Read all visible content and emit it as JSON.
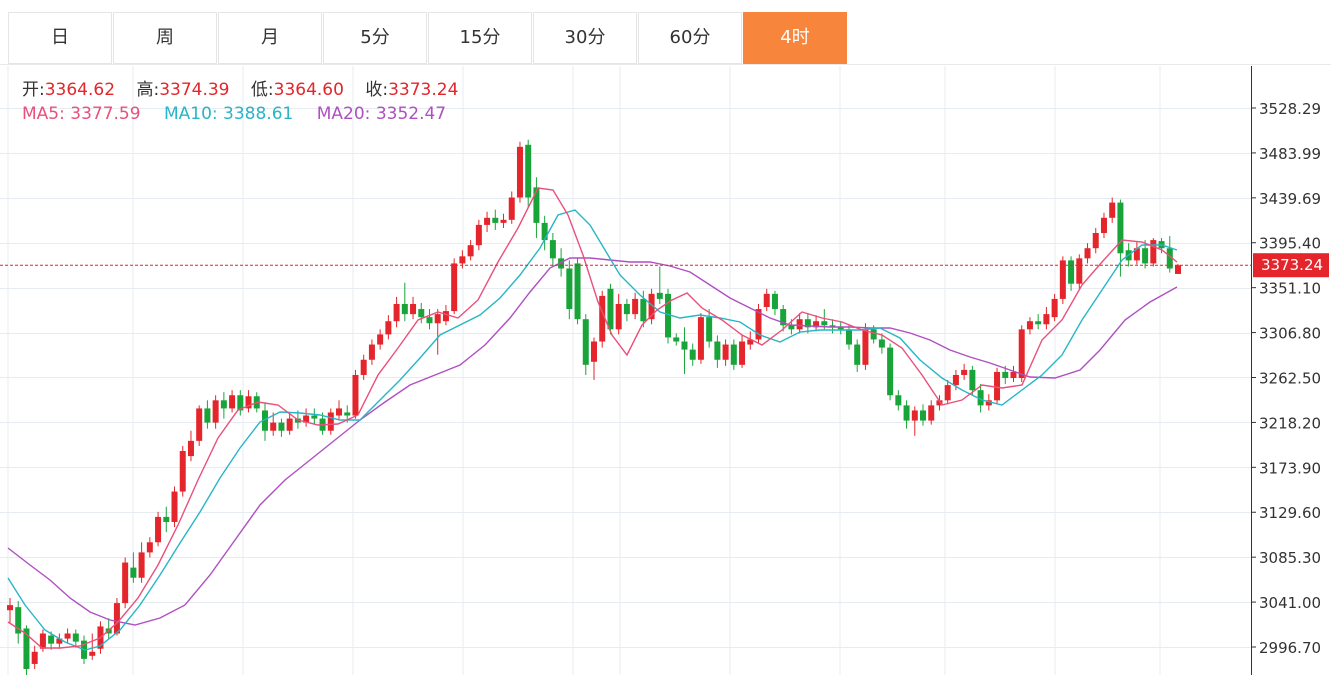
{
  "tabs": [
    {
      "label": "日",
      "active": false
    },
    {
      "label": "周",
      "active": false
    },
    {
      "label": "月",
      "active": false
    },
    {
      "label": "5分",
      "active": false
    },
    {
      "label": "15分",
      "active": false
    },
    {
      "label": "30分",
      "active": false
    },
    {
      "label": "60分",
      "active": false
    },
    {
      "label": "4时",
      "active": true
    }
  ],
  "info": {
    "open_label": "开:",
    "open": "3364.62",
    "high_label": "高:",
    "high": "3374.39",
    "low_label": "低:",
    "low": "3364.60",
    "close_label": "收:",
    "close": "3373.24",
    "ma5_label": "MA5:",
    "ma5": "3377.59",
    "ma10_label": "MA10:",
    "ma10": "3388.61",
    "ma20_label": "MA20:",
    "ma20": "3352.47"
  },
  "colors": {
    "up": "#e4252b",
    "down": "#19a43a",
    "ma5": "#e9507c",
    "ma10": "#28b5c7",
    "ma20": "#b04fc2",
    "grid": "#e6ecf2",
    "active_tab": "#f7853c",
    "last_price_line": "#e4252b"
  },
  "chart_data": {
    "type": "candlestick",
    "yticks": [
      "3528.29",
      "3483.99",
      "3439.69",
      "3395.40",
      "3351.10",
      "3306.80",
      "3262.50",
      "3218.20",
      "3173.90",
      "3129.60",
      "3085.30",
      "3041.00",
      "2996.70"
    ],
    "ylim": [
      2975,
      3580
    ],
    "last_price": 3373.24,
    "last_price_label": "3373.24",
    "candles": [
      [
        3033,
        3038,
        3020,
        3045
      ],
      [
        3036,
        3010,
        3000,
        3042
      ],
      [
        3015,
        2975,
        2965,
        3018
      ],
      [
        2980,
        2992,
        2975,
        2998
      ],
      [
        2995,
        3010,
        2992,
        3014
      ],
      [
        3008,
        3000,
        2994,
        3012
      ],
      [
        3000,
        3005,
        2995,
        3010
      ],
      [
        3005,
        3010,
        3000,
        3015
      ],
      [
        3010,
        3002,
        2996,
        3014
      ],
      [
        3003,
        2985,
        2980,
        3008
      ],
      [
        2988,
        2992,
        2984,
        3010
      ],
      [
        2995,
        3017,
        2990,
        3022
      ],
      [
        3015,
        3010,
        3005,
        3025
      ],
      [
        3010,
        3040,
        3008,
        3045
      ],
      [
        3040,
        3080,
        3035,
        3085
      ],
      [
        3075,
        3065,
        3060,
        3090
      ],
      [
        3065,
        3090,
        3060,
        3100
      ],
      [
        3090,
        3100,
        3085,
        3105
      ],
      [
        3100,
        3125,
        3096,
        3130
      ],
      [
        3125,
        3120,
        3110,
        3135
      ],
      [
        3120,
        3150,
        3115,
        3155
      ],
      [
        3150,
        3190,
        3145,
        3195
      ],
      [
        3185,
        3200,
        3180,
        3210
      ],
      [
        3200,
        3232,
        3195,
        3235
      ],
      [
        3232,
        3218,
        3212,
        3240
      ],
      [
        3218,
        3240,
        3212,
        3245
      ],
      [
        3240,
        3232,
        3222,
        3248
      ],
      [
        3232,
        3245,
        3228,
        3250
      ],
      [
        3245,
        3230,
        3225,
        3250
      ],
      [
        3232,
        3244,
        3228,
        3250
      ],
      [
        3244,
        3232,
        3228,
        3248
      ],
      [
        3230,
        3210,
        3200,
        3238
      ],
      [
        3210,
        3218,
        3205,
        3228
      ],
      [
        3218,
        3210,
        3204,
        3222
      ],
      [
        3210,
        3222,
        3206,
        3228
      ],
      [
        3222,
        3218,
        3212,
        3230
      ],
      [
        3218,
        3225,
        3214,
        3232
      ],
      [
        3225,
        3222,
        3216,
        3232
      ],
      [
        3222,
        3210,
        3206,
        3228
      ],
      [
        3210,
        3228,
        3206,
        3232
      ],
      [
        3225,
        3232,
        3220,
        3240
      ],
      [
        3228,
        3225,
        3218,
        3235
      ],
      [
        3225,
        3265,
        3222,
        3270
      ],
      [
        3265,
        3280,
        3260,
        3285
      ],
      [
        3280,
        3295,
        3275,
        3300
      ],
      [
        3295,
        3305,
        3290,
        3310
      ],
      [
        3305,
        3318,
        3300,
        3324
      ],
      [
        3318,
        3335,
        3312,
        3342
      ],
      [
        3335,
        3325,
        3318,
        3356
      ],
      [
        3325,
        3335,
        3320,
        3342
      ],
      [
        3330,
        3322,
        3316,
        3336
      ],
      [
        3322,
        3316,
        3310,
        3330
      ],
      [
        3316,
        3325,
        3285,
        3330
      ],
      [
        3318,
        3328,
        3314,
        3334
      ],
      [
        3328,
        3375,
        3325,
        3380
      ],
      [
        3375,
        3382,
        3370,
        3388
      ],
      [
        3382,
        3393,
        3378,
        3398
      ],
      [
        3393,
        3413,
        3388,
        3418
      ],
      [
        3413,
        3420,
        3406,
        3426
      ],
      [
        3420,
        3415,
        3408,
        3428
      ],
      [
        3415,
        3418,
        3410,
        3424
      ],
      [
        3418,
        3440,
        3414,
        3446
      ],
      [
        3440,
        3490,
        3435,
        3495
      ],
      [
        3492,
        3440,
        3430,
        3497
      ],
      [
        3450,
        3415,
        3400,
        3460
      ],
      [
        3415,
        3398,
        3388,
        3422
      ],
      [
        3398,
        3380,
        3372,
        3405
      ],
      [
        3380,
        3370,
        3362,
        3390
      ],
      [
        3370,
        3330,
        3320,
        3378
      ],
      [
        3375,
        3320,
        3315,
        3380
      ],
      [
        3320,
        3275,
        3265,
        3325
      ],
      [
        3278,
        3298,
        3260,
        3302
      ],
      [
        3298,
        3343,
        3292,
        3348
      ],
      [
        3350,
        3310,
        3305,
        3355
      ],
      [
        3310,
        3335,
        3305,
        3345
      ],
      [
        3335,
        3325,
        3318,
        3340
      ],
      [
        3325,
        3340,
        3320,
        3346
      ],
      [
        3340,
        3318,
        3312,
        3348
      ],
      [
        3320,
        3345,
        3315,
        3350
      ],
      [
        3346,
        3340,
        3335,
        3372
      ],
      [
        3345,
        3302,
        3296,
        3350
      ],
      [
        3302,
        3298,
        3294,
        3306
      ],
      [
        3298,
        3290,
        3266,
        3312
      ],
      [
        3290,
        3280,
        3274,
        3296
      ],
      [
        3280,
        3322,
        3276,
        3326
      ],
      [
        3322,
        3298,
        3292,
        3330
      ],
      [
        3298,
        3280,
        3272,
        3304
      ],
      [
        3280,
        3295,
        3274,
        3300
      ],
      [
        3295,
        3275,
        3270,
        3300
      ],
      [
        3275,
        3298,
        3272,
        3305
      ],
      [
        3295,
        3300,
        3290,
        3308
      ],
      [
        3300,
        3330,
        3296,
        3335
      ],
      [
        3332,
        3345,
        3328,
        3350
      ],
      [
        3345,
        3330,
        3324,
        3348
      ],
      [
        3330,
        3314,
        3308,
        3334
      ],
      [
        3314,
        3310,
        3305,
        3320
      ],
      [
        3310,
        3320,
        3306,
        3326
      ],
      [
        3320,
        3312,
        3306,
        3326
      ],
      [
        3312,
        3318,
        3308,
        3324
      ],
      [
        3318,
        3314,
        3310,
        3330
      ],
      [
        3314,
        3312,
        3306,
        3320
      ],
      [
        3312,
        3310,
        3305,
        3318
      ],
      [
        3310,
        3295,
        3290,
        3314
      ],
      [
        3295,
        3275,
        3268,
        3300
      ],
      [
        3275,
        3310,
        3270,
        3316
      ],
      [
        3310,
        3300,
        3296,
        3314
      ],
      [
        3300,
        3292,
        3286,
        3306
      ],
      [
        3292,
        3245,
        3240,
        3296
      ],
      [
        3245,
        3235,
        3230,
        3250
      ],
      [
        3235,
        3220,
        3212,
        3240
      ],
      [
        3220,
        3230,
        3205,
        3234
      ],
      [
        3230,
        3220,
        3215,
        3236
      ],
      [
        3220,
        3235,
        3216,
        3240
      ],
      [
        3235,
        3240,
        3230,
        3245
      ],
      [
        3240,
        3255,
        3236,
        3260
      ],
      [
        3255,
        3265,
        3250,
        3270
      ],
      [
        3265,
        3270,
        3260,
        3276
      ],
      [
        3270,
        3250,
        3245,
        3274
      ],
      [
        3250,
        3235,
        3228,
        3256
      ],
      [
        3235,
        3240,
        3230,
        3246
      ],
      [
        3240,
        3268,
        3236,
        3272
      ],
      [
        3268,
        3262,
        3256,
        3274
      ],
      [
        3262,
        3268,
        3258,
        3274
      ],
      [
        3262,
        3310,
        3258,
        3314
      ],
      [
        3310,
        3318,
        3305,
        3322
      ],
      [
        3318,
        3315,
        3310,
        3325
      ],
      [
        3315,
        3325,
        3310,
        3332
      ],
      [
        3322,
        3340,
        3318,
        3345
      ],
      [
        3340,
        3378,
        3335,
        3382
      ],
      [
        3378,
        3355,
        3348,
        3382
      ],
      [
        3355,
        3380,
        3350,
        3384
      ],
      [
        3380,
        3390,
        3375,
        3395
      ],
      [
        3390,
        3405,
        3385,
        3410
      ],
      [
        3405,
        3420,
        3400,
        3425
      ],
      [
        3420,
        3435,
        3415,
        3440
      ],
      [
        3435,
        3385,
        3362,
        3438
      ],
      [
        3388,
        3378,
        3372,
        3395
      ],
      [
        3378,
        3390,
        3374,
        3396
      ],
      [
        3390,
        3375,
        3370,
        3398
      ],
      [
        3375,
        3398,
        3372,
        3400
      ],
      [
        3397,
        3390,
        3385,
        3400
      ],
      [
        3390,
        3370,
        3366,
        3402
      ],
      [
        3364.62,
        3373.24,
        3364.6,
        3374.39
      ]
    ],
    "ma5": [
      [
        8,
        622
      ],
      [
        25,
        633
      ],
      [
        42,
        648
      ],
      [
        60,
        648
      ],
      [
        80,
        646
      ],
      [
        100,
        638
      ],
      [
        118,
        622
      ],
      [
        138,
        598
      ],
      [
        158,
        565
      ],
      [
        178,
        525
      ],
      [
        198,
        480
      ],
      [
        218,
        438
      ],
      [
        238,
        410
      ],
      [
        258,
        402
      ],
      [
        278,
        405
      ],
      [
        298,
        420
      ],
      [
        318,
        425
      ],
      [
        338,
        424
      ],
      [
        358,
        415
      ],
      [
        378,
        375
      ],
      [
        398,
        348
      ],
      [
        418,
        320
      ],
      [
        438,
        312
      ],
      [
        458,
        318
      ],
      [
        478,
        300
      ],
      [
        498,
        262
      ],
      [
        518,
        228
      ],
      [
        538,
        188
      ],
      [
        553,
        190
      ],
      [
        568,
        215
      ],
      [
        583,
        255
      ],
      [
        598,
        302
      ],
      [
        612,
        335
      ],
      [
        627,
        355
      ],
      [
        642,
        325
      ],
      [
        657,
        310
      ],
      [
        672,
        300
      ],
      [
        687,
        293
      ],
      [
        702,
        308
      ],
      [
        722,
        320
      ],
      [
        742,
        335
      ],
      [
        762,
        345
      ],
      [
        782,
        330
      ],
      [
        802,
        312
      ],
      [
        822,
        318
      ],
      [
        842,
        322
      ],
      [
        862,
        330
      ],
      [
        882,
        335
      ],
      [
        902,
        348
      ],
      [
        922,
        375
      ],
      [
        942,
        405
      ],
      [
        962,
        400
      ],
      [
        982,
        385
      ],
      [
        1002,
        388
      ],
      [
        1022,
        385
      ],
      [
        1042,
        340
      ],
      [
        1062,
        320
      ],
      [
        1082,
        285
      ],
      [
        1102,
        262
      ],
      [
        1122,
        240
      ],
      [
        1142,
        242
      ],
      [
        1162,
        250
      ],
      [
        1177,
        262
      ]
    ],
    "ma10": [
      [
        8,
        578
      ],
      [
        25,
        605
      ],
      [
        45,
        630
      ],
      [
        65,
        642
      ],
      [
        85,
        650
      ],
      [
        100,
        646
      ],
      [
        120,
        630
      ],
      [
        140,
        605
      ],
      [
        160,
        575
      ],
      [
        180,
        543
      ],
      [
        200,
        512
      ],
      [
        220,
        478
      ],
      [
        240,
        448
      ],
      [
        260,
        422
      ],
      [
        280,
        412
      ],
      [
        300,
        413
      ],
      [
        320,
        415
      ],
      [
        340,
        420
      ],
      [
        360,
        420
      ],
      [
        380,
        400
      ],
      [
        400,
        380
      ],
      [
        420,
        358
      ],
      [
        440,
        335
      ],
      [
        460,
        325
      ],
      [
        480,
        315
      ],
      [
        500,
        298
      ],
      [
        520,
        275
      ],
      [
        540,
        248
      ],
      [
        558,
        215
      ],
      [
        575,
        210
      ],
      [
        590,
        225
      ],
      [
        605,
        250
      ],
      [
        620,
        275
      ],
      [
        640,
        295
      ],
      [
        660,
        312
      ],
      [
        680,
        318
      ],
      [
        700,
        315
      ],
      [
        720,
        318
      ],
      [
        740,
        322
      ],
      [
        760,
        335
      ],
      [
        780,
        342
      ],
      [
        800,
        332
      ],
      [
        820,
        330
      ],
      [
        840,
        330
      ],
      [
        860,
        330
      ],
      [
        880,
        328
      ],
      [
        900,
        338
      ],
      [
        920,
        360
      ],
      [
        942,
        378
      ],
      [
        962,
        390
      ],
      [
        982,
        400
      ],
      [
        1002,
        405
      ],
      [
        1022,
        390
      ],
      [
        1042,
        375
      ],
      [
        1062,
        355
      ],
      [
        1082,
        320
      ],
      [
        1102,
        290
      ],
      [
        1122,
        260
      ],
      [
        1142,
        245
      ],
      [
        1162,
        245
      ],
      [
        1177,
        250
      ]
    ],
    "ma20": [
      [
        8,
        548
      ],
      [
        30,
        565
      ],
      [
        50,
        580
      ],
      [
        70,
        598
      ],
      [
        90,
        612
      ],
      [
        110,
        620
      ],
      [
        135,
        625
      ],
      [
        160,
        618
      ],
      [
        185,
        605
      ],
      [
        210,
        575
      ],
      [
        235,
        540
      ],
      [
        260,
        505
      ],
      [
        285,
        480
      ],
      [
        310,
        460
      ],
      [
        335,
        440
      ],
      [
        360,
        420
      ],
      [
        385,
        402
      ],
      [
        410,
        385
      ],
      [
        435,
        375
      ],
      [
        460,
        365
      ],
      [
        485,
        345
      ],
      [
        510,
        318
      ],
      [
        530,
        292
      ],
      [
        550,
        268
      ],
      [
        570,
        258
      ],
      [
        590,
        258
      ],
      [
        610,
        260
      ],
      [
        630,
        262
      ],
      [
        650,
        262
      ],
      [
        670,
        266
      ],
      [
        690,
        272
      ],
      [
        710,
        285
      ],
      [
        730,
        298
      ],
      [
        750,
        308
      ],
      [
        770,
        318
      ],
      [
        790,
        325
      ],
      [
        810,
        326
      ],
      [
        830,
        327
      ],
      [
        850,
        327
      ],
      [
        870,
        328
      ],
      [
        890,
        328
      ],
      [
        910,
        333
      ],
      [
        930,
        340
      ],
      [
        950,
        350
      ],
      [
        970,
        357
      ],
      [
        990,
        363
      ],
      [
        1010,
        370
      ],
      [
        1030,
        377
      ],
      [
        1055,
        378
      ],
      [
        1080,
        370
      ],
      [
        1100,
        350
      ],
      [
        1125,
        320
      ],
      [
        1150,
        302
      ],
      [
        1177,
        287
      ]
    ]
  }
}
